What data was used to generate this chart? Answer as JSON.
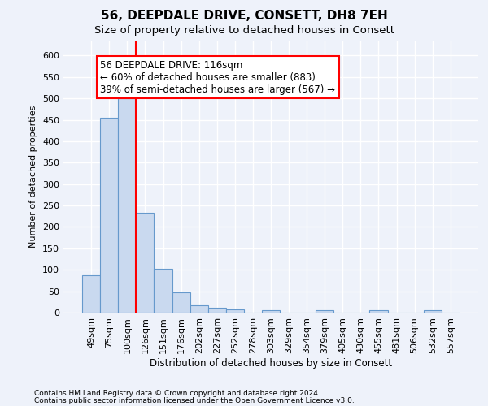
{
  "title1": "56, DEEPDALE DRIVE, CONSETT, DH8 7EH",
  "title2": "Size of property relative to detached houses in Consett",
  "xlabel": "Distribution of detached houses by size in Consett",
  "ylabel": "Number of detached properties",
  "bar_labels": [
    "49sqm",
    "75sqm",
    "100sqm",
    "126sqm",
    "151sqm",
    "176sqm",
    "202sqm",
    "227sqm",
    "252sqm",
    "278sqm",
    "303sqm",
    "329sqm",
    "354sqm",
    "379sqm",
    "405sqm",
    "430sqm",
    "455sqm",
    "481sqm",
    "506sqm",
    "532sqm",
    "557sqm"
  ],
  "bar_values": [
    88,
    455,
    500,
    234,
    103,
    47,
    18,
    11,
    7,
    0,
    5,
    0,
    0,
    5,
    0,
    0,
    5,
    0,
    0,
    5,
    0
  ],
  "bar_color": "#c9d9ef",
  "bar_edge_color": "#6699cc",
  "vline_x": 3.0,
  "vline_color": "red",
  "annotation_text": "56 DEEPDALE DRIVE: 116sqm\n← 60% of detached houses are smaller (883)\n39% of semi-detached houses are larger (567) →",
  "annotation_box_color": "white",
  "annotation_box_edgecolor": "red",
  "ylim": [
    0,
    635
  ],
  "yticks": [
    0,
    50,
    100,
    150,
    200,
    250,
    300,
    350,
    400,
    450,
    500,
    550,
    600
  ],
  "footer1": "Contains HM Land Registry data © Crown copyright and database right 2024.",
  "footer2": "Contains public sector information licensed under the Open Government Licence v3.0.",
  "bg_color": "#eef2fa",
  "grid_color": "white",
  "title_fontsize": 11,
  "subtitle_fontsize": 9.5,
  "annot_fontsize": 8.5,
  "axis_fontsize": 8,
  "tick_fontsize": 8,
  "xlabel_fontsize": 8.5,
  "footer_fontsize": 6.5
}
